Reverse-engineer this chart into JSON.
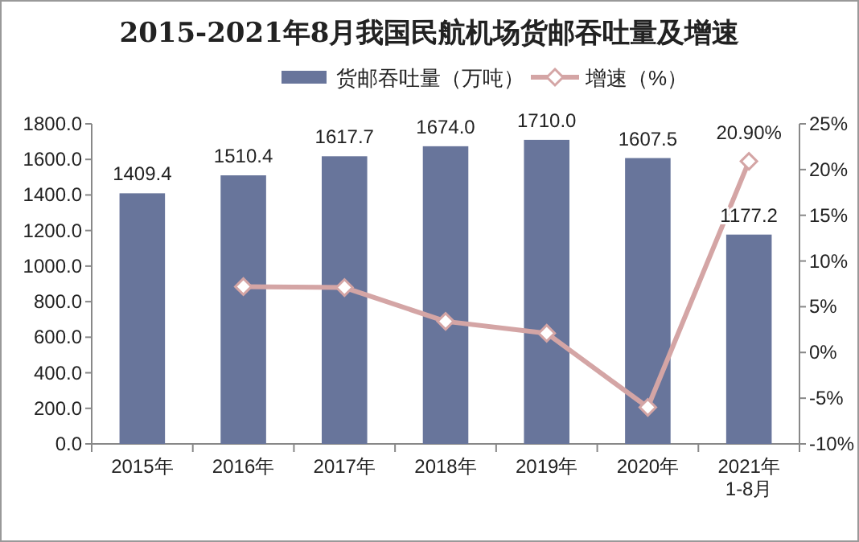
{
  "chart_data": {
    "type": "bar",
    "title": "2015-2021年8月我国民航机场货邮吞吐量及增速",
    "categories": [
      "2015年",
      "2016年",
      "2017年",
      "2018年",
      "2019年",
      "2020年",
      "2021年\n1-8月"
    ],
    "series": [
      {
        "name": "货邮吞吐量（万吨）",
        "color": "#68759b",
        "values": [
          1409.4,
          1510.4,
          1617.7,
          1674.0,
          1710.0,
          1607.5,
          1177.2
        ],
        "value_labels": [
          "1409.4",
          "1510.4",
          "1617.7",
          "1674.0",
          "1710.0",
          "1607.5",
          "1177.2"
        ]
      },
      {
        "name": "增速（%）",
        "type": "line",
        "axis": "y2",
        "color": "#d4a5a5",
        "marker": "diamond",
        "values": [
          null,
          7.2,
          7.1,
          3.4,
          2.1,
          -6.0,
          20.9
        ],
        "value_labels": [
          null,
          null,
          null,
          null,
          null,
          null,
          "20.90%"
        ]
      }
    ],
    "ylim": [
      0,
      1800
    ],
    "yticks": [
      {
        "value": 0,
        "label": "0.0"
      },
      {
        "value": 200,
        "label": "200.0"
      },
      {
        "value": 400,
        "label": "400.0"
      },
      {
        "value": 600,
        "label": "600.0"
      },
      {
        "value": 800,
        "label": "800.0"
      },
      {
        "value": 1000,
        "label": "1000.0"
      },
      {
        "value": 1200,
        "label": "1200.0"
      },
      {
        "value": 1400,
        "label": "1400.0"
      },
      {
        "value": 1600,
        "label": "1600.0"
      },
      {
        "value": 1800,
        "label": "1800.0"
      }
    ],
    "y2lim": [
      -10,
      25
    ],
    "y2ticks": [
      {
        "value": -10,
        "label": "-10%"
      },
      {
        "value": -5,
        "label": "-5%"
      },
      {
        "value": 0,
        "label": "0%"
      },
      {
        "value": 5,
        "label": "5%"
      },
      {
        "value": 10,
        "label": "10%"
      },
      {
        "value": 15,
        "label": "15%"
      },
      {
        "value": 20,
        "label": "20%"
      },
      {
        "value": 25,
        "label": "25%"
      }
    ],
    "legend": "top"
  }
}
